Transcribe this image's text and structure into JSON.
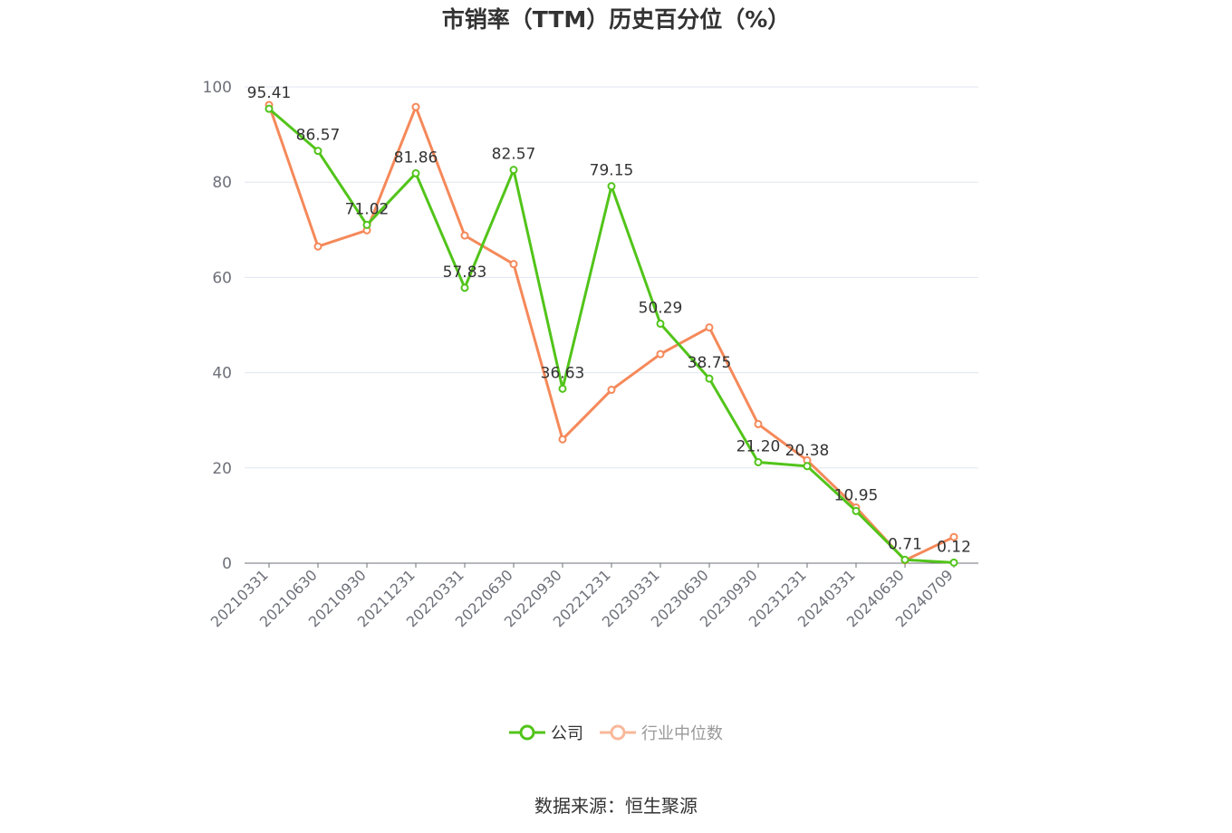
{
  "chart_data": {
    "type": "line",
    "title": "市销率（TTM）历史百分位（%）",
    "categories": [
      "20210331",
      "20210630",
      "20210930",
      "20211231",
      "20220331",
      "20220630",
      "20220930",
      "20221231",
      "20230331",
      "20230630",
      "20230930",
      "20231231",
      "20240331",
      "20240630",
      "20240709"
    ],
    "series": [
      {
        "name": "公司",
        "color": "#52c41a",
        "labeled": true,
        "values": [
          95.41,
          86.57,
          71.02,
          81.86,
          57.83,
          82.57,
          36.63,
          79.15,
          50.29,
          38.75,
          21.2,
          20.38,
          10.95,
          0.71,
          0.12
        ],
        "labels": [
          "95.41",
          "86.57",
          "71.02",
          "81.86",
          "57.83",
          "82.57",
          "36.63",
          "79.15",
          "50.29",
          "38.75",
          "21.20",
          "20.38",
          "10.95",
          "0.71",
          "0.12"
        ]
      },
      {
        "name": "行业中位数",
        "color": "#f5895a",
        "labeled": false,
        "values": [
          96.2,
          66.5,
          69.9,
          95.8,
          68.8,
          62.8,
          26.0,
          36.4,
          43.9,
          49.5,
          29.2,
          21.6,
          11.7,
          0.6,
          5.5
        ]
      }
    ],
    "ylim": [
      0,
      100
    ],
    "yticks": [
      "0",
      "20",
      "40",
      "60",
      "80",
      "100"
    ],
    "grid": true,
    "legend_position": "bottom-center"
  },
  "source": "数据来源：恒生聚源"
}
